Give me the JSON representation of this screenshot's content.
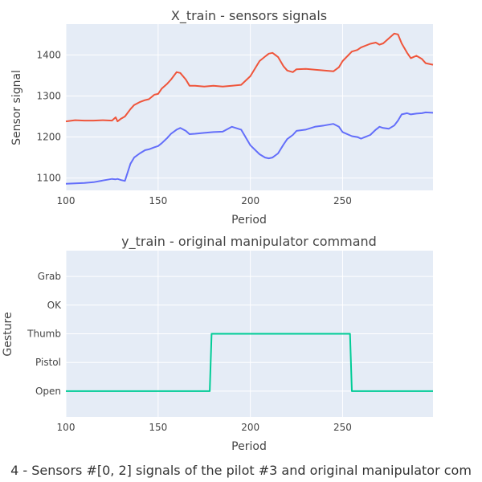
{
  "figure": {
    "caption": "4 - Sensors #[0, 2] signals of the pilot #3 and original manipulator com",
    "colors": {
      "plot_bg": "#e5ecf6",
      "grid": "#ffffff",
      "text": "#444444"
    }
  },
  "chart_data": [
    {
      "type": "line",
      "title": "X_train - sensors signals",
      "xlabel": "Period",
      "ylabel": "Sensor signal",
      "xlim": [
        100,
        299
      ],
      "ylim": [
        1070,
        1475
      ],
      "xticks": [
        100,
        150,
        200,
        250
      ],
      "yticks": [
        1100,
        1200,
        1300,
        1400
      ],
      "x": [
        100,
        105,
        110,
        115,
        120,
        125,
        127,
        128,
        130,
        132,
        135,
        137,
        140,
        143,
        145,
        148,
        150,
        152,
        155,
        157,
        160,
        162,
        165,
        167,
        170,
        175,
        180,
        185,
        190,
        195,
        200,
        205,
        208,
        210,
        212,
        215,
        218,
        220,
        223,
        225,
        230,
        235,
        240,
        245,
        248,
        250,
        255,
        258,
        260,
        265,
        268,
        270,
        272,
        275,
        278,
        280,
        282,
        285,
        287,
        290,
        293,
        295,
        299
      ],
      "series": [
        {
          "color": "#ef553b",
          "values": [
            1238,
            1241,
            1240,
            1240,
            1241,
            1240,
            1248,
            1238,
            1245,
            1250,
            1268,
            1278,
            1285,
            1290,
            1292,
            1303,
            1305,
            1318,
            1330,
            1340,
            1358,
            1356,
            1340,
            1325,
            1325,
            1323,
            1325,
            1323,
            1325,
            1327,
            1348,
            1385,
            1396,
            1403,
            1405,
            1395,
            1372,
            1362,
            1358,
            1365,
            1366,
            1364,
            1362,
            1360,
            1370,
            1385,
            1408,
            1412,
            1418,
            1427,
            1430,
            1425,
            1428,
            1440,
            1452,
            1450,
            1428,
            1405,
            1392,
            1398,
            1390,
            1380,
            1376
          ]
        },
        {
          "color": "#636efa",
          "values": [
            1086,
            1087,
            1088,
            1090,
            1094,
            1098,
            1097,
            1098,
            1095,
            1093,
            1135,
            1150,
            1160,
            1168,
            1170,
            1175,
            1178,
            1185,
            1198,
            1208,
            1218,
            1222,
            1215,
            1207,
            1208,
            1210,
            1212,
            1213,
            1225,
            1218,
            1180,
            1158,
            1150,
            1148,
            1150,
            1160,
            1182,
            1195,
            1205,
            1215,
            1218,
            1225,
            1228,
            1232,
            1225,
            1212,
            1202,
            1200,
            1196,
            1205,
            1218,
            1225,
            1222,
            1220,
            1228,
            1240,
            1255,
            1258,
            1255,
            1257,
            1258,
            1260,
            1259
          ]
        }
      ]
    },
    {
      "type": "line",
      "title": "y_train - original manipulator command",
      "xlabel": "Period",
      "ylabel": "Gesture",
      "xlim": [
        100,
        299
      ],
      "ylim": [
        -0.9,
        4.9
      ],
      "xticks": [
        100,
        150,
        200,
        250
      ],
      "categories": [
        "Open",
        "Pistol",
        "Thumb",
        "OK",
        "Grab"
      ],
      "x": [
        100,
        178,
        179,
        254,
        255,
        299
      ],
      "series": [
        {
          "color": "#00cc96",
          "values": [
            0,
            0,
            2,
            2,
            0,
            0
          ]
        }
      ]
    }
  ]
}
